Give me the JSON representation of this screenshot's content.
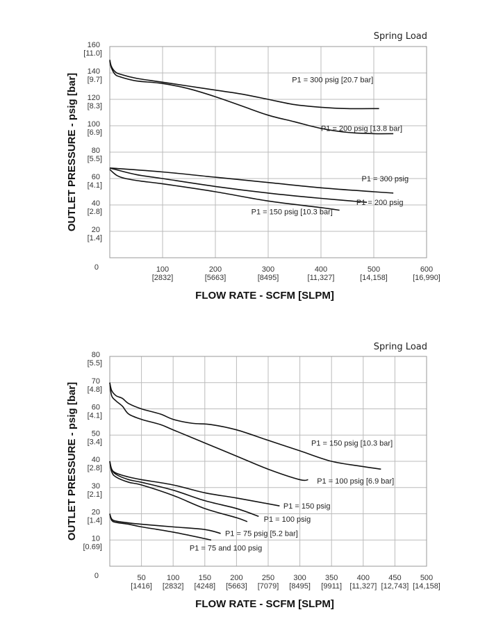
{
  "chart_data": [
    {
      "type": "line",
      "title": "",
      "note": "Spring Load",
      "xlabel": "FLOW RATE - SCFM [SLPM]",
      "ylabel": "OUTLET PRESSURE - psig [bar]",
      "xlim": [
        0,
        600
      ],
      "ylim": [
        0,
        160
      ],
      "grid": true,
      "xticks": [
        {
          "v": 100,
          "l1": "100",
          "l2": "[2832]"
        },
        {
          "v": 200,
          "l1": "200",
          "l2": "[5663]"
        },
        {
          "v": 300,
          "l1": "300",
          "l2": "[8495]"
        },
        {
          "v": 400,
          "l1": "400",
          "l2": "[11,327]"
        },
        {
          "v": 500,
          "l1": "500",
          "l2": "[14,158]"
        },
        {
          "v": 600,
          "l1": "600",
          "l2": "[16,990]"
        }
      ],
      "yticks": [
        {
          "v": 160,
          "l1": "160",
          "l2": "[11.0]"
        },
        {
          "v": 140,
          "l1": "140",
          "l2": "[9.7]"
        },
        {
          "v": 120,
          "l1": "120",
          "l2": "[8.3]"
        },
        {
          "v": 100,
          "l1": "100",
          "l2": "[6.9]"
        },
        {
          "v": 80,
          "l1": "80",
          "l2": "[5.5]"
        },
        {
          "v": 60,
          "l1": "60",
          "l2": "[4.1]"
        },
        {
          "v": 40,
          "l1": "40",
          "l2": "[2.8]"
        },
        {
          "v": 20,
          "l1": "20",
          "l2": "[1.4]"
        }
      ],
      "origin_label": "0",
      "series": [
        {
          "name": "P1 = 300 psig [20.7 bar]",
          "label_at": [
            345,
            133
          ],
          "points": [
            [
              0,
              150
            ],
            [
              3,
              145
            ],
            [
              10,
              141
            ],
            [
              20,
              139
            ],
            [
              50,
              136
            ],
            [
              100,
              133
            ],
            [
              150,
              130
            ],
            [
              200,
              127
            ],
            [
              250,
              124
            ],
            [
              300,
              120
            ],
            [
              350,
              116
            ],
            [
              400,
              114
            ],
            [
              450,
              113
            ],
            [
              510,
              113
            ]
          ]
        },
        {
          "name": "P1 = 200 psig [13.8 bar]",
          "label_at": [
            400,
            96
          ],
          "points": [
            [
              0,
              149
            ],
            [
              3,
              144
            ],
            [
              10,
              139
            ],
            [
              20,
              137
            ],
            [
              50,
              134
            ],
            [
              100,
              132
            ],
            [
              150,
              128
            ],
            [
              200,
              122
            ],
            [
              250,
              115
            ],
            [
              300,
              108
            ],
            [
              350,
              103
            ],
            [
              400,
              98
            ],
            [
              450,
              95
            ],
            [
              500,
              94
            ],
            [
              537,
              94
            ]
          ]
        },
        {
          "name": "P1 = 300 psig",
          "label_at": [
            477,
            58
          ],
          "points": [
            [
              0,
              68
            ],
            [
              100,
              65
            ],
            [
              200,
              61
            ],
            [
              300,
              57
            ],
            [
              400,
              53
            ],
            [
              500,
              50
            ],
            [
              537,
              49
            ]
          ]
        },
        {
          "name": "P1 = 200 psig",
          "label_at": [
            467,
            40
          ],
          "points": [
            [
              0,
              68
            ],
            [
              50,
              63
            ],
            [
              100,
              60
            ],
            [
              200,
              54
            ],
            [
              300,
              49
            ],
            [
              400,
              45
            ],
            [
              487,
              42
            ]
          ]
        },
        {
          "name": "P1 = 150 psig [10.3 bar]",
          "label_at": [
            268,
            33
          ],
          "points": [
            [
              0,
              67
            ],
            [
              5,
              65
            ],
            [
              15,
              62
            ],
            [
              30,
              60
            ],
            [
              60,
              58
            ],
            [
              100,
              56
            ],
            [
              200,
              50
            ],
            [
              300,
              43
            ],
            [
              400,
              38
            ],
            [
              435,
              36
            ]
          ]
        }
      ]
    },
    {
      "type": "line",
      "title": "",
      "note": "Spring Load",
      "xlabel": "FLOW RATE - SCFM [SLPM]",
      "ylabel": "OUTLET PRESSURE - psig [bar]",
      "xlim": [
        0,
        500
      ],
      "ylim": [
        0,
        80
      ],
      "grid": true,
      "xticks": [
        {
          "v": 50,
          "l1": "50",
          "l2": "[1416]"
        },
        {
          "v": 100,
          "l1": "100",
          "l2": "[2832]"
        },
        {
          "v": 150,
          "l1": "150",
          "l2": "[4248]"
        },
        {
          "v": 200,
          "l1": "200",
          "l2": "[5663]"
        },
        {
          "v": 250,
          "l1": "250",
          "l2": "[7079]"
        },
        {
          "v": 300,
          "l1": "300",
          "l2": "[8495]"
        },
        {
          "v": 350,
          "l1": "350",
          "l2": "[9911]"
        },
        {
          "v": 400,
          "l1": "400",
          "l2": "[11,327]"
        },
        {
          "v": 450,
          "l1": "450",
          "l2": "[12,743]"
        },
        {
          "v": 500,
          "l1": "500",
          "l2": "[14,158]"
        }
      ],
      "yticks": [
        {
          "v": 80,
          "l1": "80",
          "l2": "[5.5]"
        },
        {
          "v": 70,
          "l1": "70",
          "l2": "[4.8]"
        },
        {
          "v": 60,
          "l1": "60",
          "l2": "[4.1]"
        },
        {
          "v": 50,
          "l1": "50",
          "l2": "[3.4]"
        },
        {
          "v": 40,
          "l1": "40",
          "l2": "[2.8]"
        },
        {
          "v": 30,
          "l1": "30",
          "l2": "[2.1]"
        },
        {
          "v": 20,
          "l1": "20",
          "l2": "[1.4]"
        },
        {
          "v": 10,
          "l1": "10",
          "l2": "[0.69]"
        }
      ],
      "origin_label": "0",
      "series": [
        {
          "name": "P1 = 150 psig [10.3 bar]",
          "label_at": [
            318,
            46
          ],
          "points": [
            [
              0,
              70
            ],
            [
              3,
              67
            ],
            [
              10,
              65
            ],
            [
              20,
              64
            ],
            [
              30,
              62
            ],
            [
              50,
              60
            ],
            [
              80,
              58
            ],
            [
              100,
              56
            ],
            [
              130,
              54.5
            ],
            [
              160,
              54
            ],
            [
              200,
              52
            ],
            [
              250,
              48
            ],
            [
              300,
              44
            ],
            [
              350,
              40
            ],
            [
              400,
              38
            ],
            [
              428,
              37
            ]
          ]
        },
        {
          "name": "P1 = 100 psig [6.9 bar]",
          "label_at": [
            327,
            31.5
          ],
          "points": [
            [
              0,
              70
            ],
            [
              3,
              65
            ],
            [
              10,
              63
            ],
            [
              20,
              61
            ],
            [
              30,
              58
            ],
            [
              50,
              56
            ],
            [
              80,
              54
            ],
            [
              100,
              52
            ],
            [
              150,
              47
            ],
            [
              200,
              42
            ],
            [
              250,
              37
            ],
            [
              300,
              33
            ],
            [
              313,
              33
            ]
          ]
        },
        {
          "name": "P1 = 150 psig",
          "label_at": [
            274,
            22
          ],
          "points": [
            [
              0,
              40
            ],
            [
              3,
              37
            ],
            [
              10,
              35.5
            ],
            [
              30,
              34
            ],
            [
              50,
              33
            ],
            [
              100,
              31
            ],
            [
              150,
              28
            ],
            [
              200,
              26
            ],
            [
              268,
              23
            ]
          ]
        },
        {
          "name": "P1 = 100 psig",
          "label_at": [
            243,
            17
          ],
          "points": [
            [
              0,
              40
            ],
            [
              3,
              37
            ],
            [
              10,
              35
            ],
            [
              30,
              33
            ],
            [
              50,
              32
            ],
            [
              100,
              29
            ],
            [
              150,
              25
            ],
            [
              200,
              22
            ],
            [
              235,
              19
            ]
          ]
        },
        {
          "name": "",
          "label_at": null,
          "points": [
            [
              0,
              40
            ],
            [
              3,
              36
            ],
            [
              10,
              34
            ],
            [
              30,
              32
            ],
            [
              50,
              31
            ],
            [
              100,
              27
            ],
            [
              150,
              22
            ],
            [
              200,
              18.5
            ],
            [
              217,
              17
            ]
          ]
        },
        {
          "name": "P1 = 75 psig [5.2 bar]",
          "label_at": [
            182,
            11.5
          ],
          "points": [
            [
              0,
              20
            ],
            [
              3,
              18
            ],
            [
              10,
              17.2
            ],
            [
              30,
              16.5
            ],
            [
              50,
              16
            ],
            [
              100,
              15
            ],
            [
              150,
              14
            ],
            [
              175,
              12.5
            ]
          ]
        },
        {
          "name": "P1 = 75 and 100 psig",
          "label_at": [
            126,
            6
          ],
          "points": [
            [
              0,
              20
            ],
            [
              3,
              17.5
            ],
            [
              10,
              16.7
            ],
            [
              30,
              16
            ],
            [
              50,
              15
            ],
            [
              100,
              13
            ],
            [
              160,
              10
            ]
          ]
        }
      ]
    }
  ]
}
